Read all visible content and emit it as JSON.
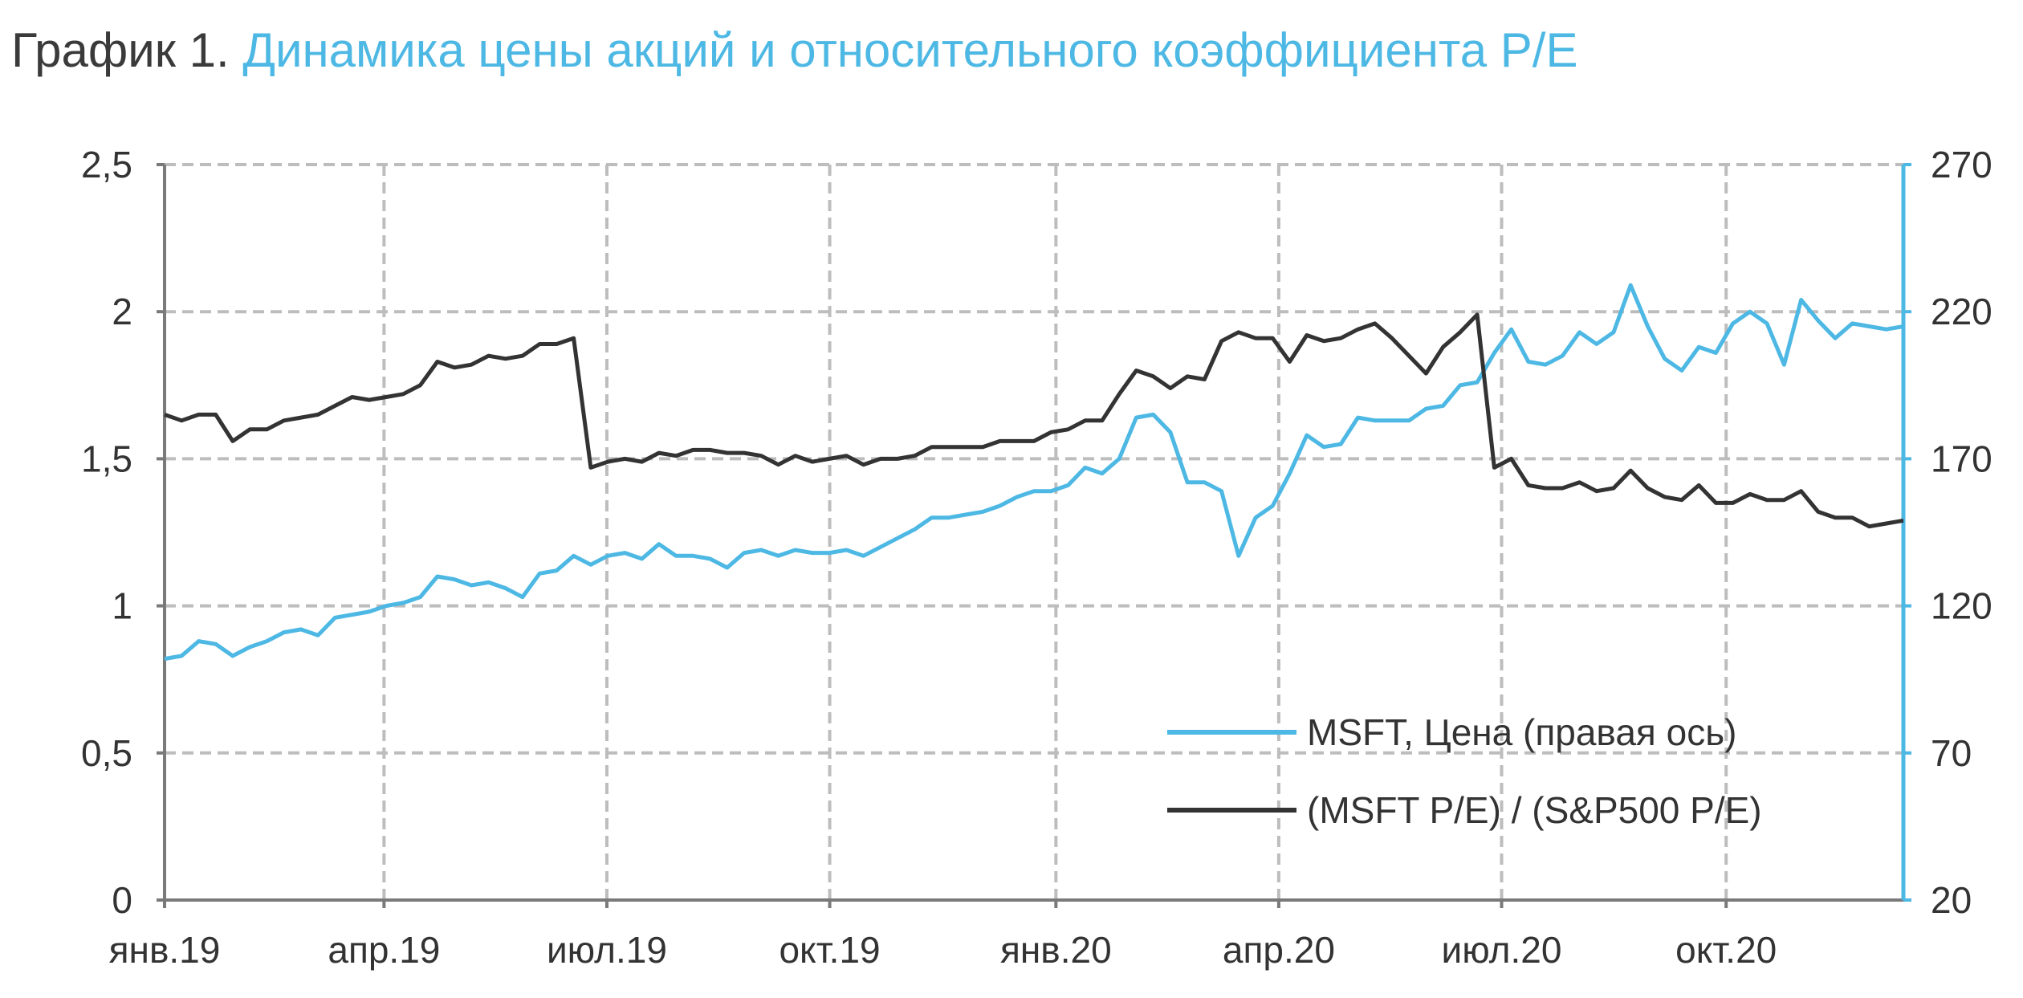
{
  "title": {
    "prefix": "График 1.",
    "main": "Динамика цены акций и относительного коэффициента P/E"
  },
  "colors": {
    "price": "#4db8e4",
    "ratio": "#333333",
    "grid": "#bdbdbd",
    "left_axis": "#7a7a7a",
    "right_axis": "#4db8e4"
  },
  "chart_data": {
    "type": "line",
    "title": "Динамика цены акций и относительного коэффициента P/E",
    "x_unit": "weeks since Jan 2019",
    "xlim": [
      0,
      103
    ],
    "x_ticks": [
      {
        "label": "янв.19",
        "pos": 0
      },
      {
        "label": "апр.19",
        "pos": 13
      },
      {
        "label": "июл.19",
        "pos": 26.2
      },
      {
        "label": "окт.19",
        "pos": 39.4
      },
      {
        "label": "янв.20",
        "pos": 52.8
      },
      {
        "label": "апр.20",
        "pos": 66
      },
      {
        "label": "июл.20",
        "pos": 79.2
      },
      {
        "label": "окт.20",
        "pos": 92.5
      }
    ],
    "y_left": {
      "lim": [
        0,
        2.5
      ],
      "ticks": [
        "0",
        "0,5",
        "1",
        "1,5",
        "2",
        "2,5"
      ],
      "tick_values": [
        0,
        0.5,
        1,
        1.5,
        2,
        2.5
      ]
    },
    "y_right": {
      "lim": [
        20,
        270
      ],
      "ticks": [
        "20",
        "70",
        "120",
        "170",
        "220",
        "270"
      ],
      "tick_values": [
        20,
        70,
        120,
        170,
        220,
        270
      ]
    },
    "grid": true,
    "legend_position": "bottom-right",
    "series": [
      {
        "name": "MSFT, Цена (правая ось)",
        "axis": "right",
        "color": "#4db8e4",
        "values": [
          102,
          103,
          108,
          107,
          103,
          106,
          108,
          111,
          112,
          110,
          116,
          117,
          118,
          120,
          121,
          123,
          130,
          129,
          127,
          128,
          126,
          123,
          131,
          132,
          137,
          134,
          137,
          138,
          136,
          141,
          137,
          137,
          136,
          133,
          138,
          139,
          137,
          139,
          138,
          138,
          139,
          137,
          140,
          143,
          146,
          150,
          150,
          151,
          152,
          154,
          157,
          159,
          159,
          161,
          167,
          165,
          170,
          184,
          185,
          179,
          162,
          162,
          159,
          137,
          150,
          154,
          165,
          178,
          174,
          175,
          184,
          183,
          183,
          183,
          187,
          188,
          195,
          196,
          206,
          214,
          203,
          202,
          205,
          213,
          209,
          213,
          229,
          215,
          204,
          200,
          208,
          206,
          216,
          220,
          216,
          202,
          224,
          217,
          211,
          216,
          215,
          214,
          215
        ]
      },
      {
        "name": "(MSFT P/E) / (S&P500 P/E)",
        "axis": "left",
        "color": "#333333",
        "values": [
          1.65,
          1.63,
          1.65,
          1.65,
          1.56,
          1.6,
          1.6,
          1.63,
          1.64,
          1.65,
          1.68,
          1.71,
          1.7,
          1.71,
          1.72,
          1.75,
          1.83,
          1.81,
          1.82,
          1.85,
          1.84,
          1.85,
          1.89,
          1.89,
          1.91,
          1.47,
          1.49,
          1.5,
          1.49,
          1.52,
          1.51,
          1.53,
          1.53,
          1.52,
          1.52,
          1.51,
          1.48,
          1.51,
          1.49,
          1.5,
          1.51,
          1.48,
          1.5,
          1.5,
          1.51,
          1.54,
          1.54,
          1.54,
          1.54,
          1.56,
          1.56,
          1.56,
          1.59,
          1.6,
          1.63,
          1.63,
          1.72,
          1.8,
          1.78,
          1.74,
          1.78,
          1.77,
          1.9,
          1.93,
          1.91,
          1.91,
          1.83,
          1.92,
          1.9,
          1.91,
          1.94,
          1.96,
          1.91,
          1.85,
          1.79,
          1.88,
          1.93,
          1.99,
          1.47,
          1.5,
          1.41,
          1.4,
          1.4,
          1.42,
          1.39,
          1.4,
          1.46,
          1.4,
          1.37,
          1.36,
          1.41,
          1.35,
          1.35,
          1.38,
          1.36,
          1.36,
          1.39,
          1.32,
          1.3,
          1.3,
          1.27,
          1.28,
          1.29
        ]
      }
    ]
  }
}
